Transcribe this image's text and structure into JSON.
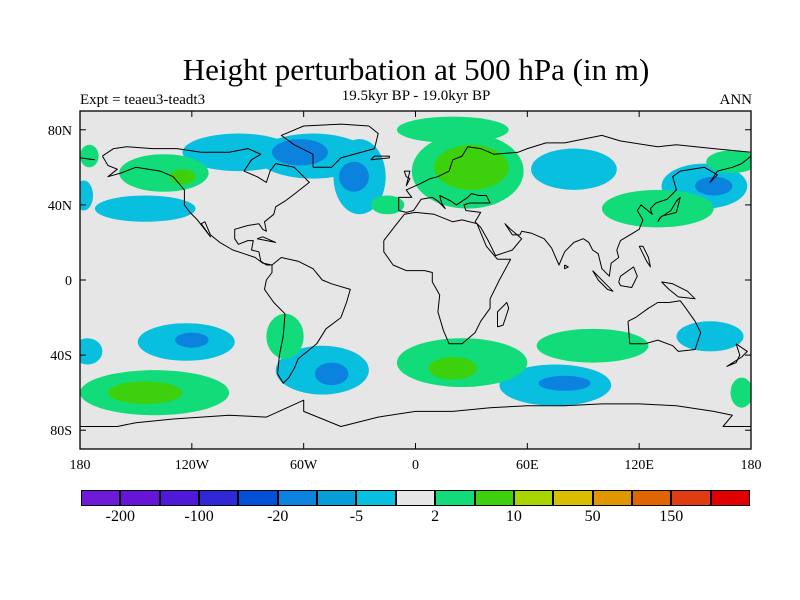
{
  "title": "Height perturbation at 500 hPa (in m)",
  "subtitle": "19.5kyr BP - 19.0kyr BP",
  "experiment_label": "Expt = teaeu3-teadt3",
  "season": "ANN",
  "map": {
    "projection": "cylindrical equidistant",
    "lon_range": [
      -180,
      180
    ],
    "lat_range": [
      -90,
      90
    ],
    "x_ticks": [
      {
        "lon": -180,
        "label": "180"
      },
      {
        "lon": -120,
        "label": "120W"
      },
      {
        "lon": -60,
        "label": "60W"
      },
      {
        "lon": 0,
        "label": "0"
      },
      {
        "lon": 60,
        "label": "60E"
      },
      {
        "lon": 120,
        "label": "120E"
      },
      {
        "lon": 180,
        "label": "180"
      }
    ],
    "y_ticks": [
      {
        "lat": 80,
        "label": "80N"
      },
      {
        "lat": 40,
        "label": "40N"
      },
      {
        "lat": 0,
        "label": "0"
      },
      {
        "lat": -40,
        "label": "40S"
      },
      {
        "lat": -80,
        "label": "80S"
      }
    ],
    "background_color": "#e6e6e6"
  },
  "colorbar": {
    "colors": [
      "#6e1ad6",
      "#6514d8",
      "#5018d8",
      "#3028d6",
      "#0050d8",
      "#0a82de",
      "#069ed9",
      "#08bfe0",
      "#e6e6e6",
      "#12dc7a",
      "#3cd10c",
      "#a8d400",
      "#d8bd00",
      "#e09600",
      "#e06400",
      "#e03c14",
      "#e00000"
    ],
    "labels": [
      {
        "boundary": 1,
        "text": "-200"
      },
      {
        "boundary": 3,
        "text": "-100"
      },
      {
        "boundary": 5,
        "text": "-20"
      },
      {
        "boundary": 7,
        "text": "-5"
      },
      {
        "boundary": 9,
        "text": "2"
      },
      {
        "boundary": 11,
        "text": "10"
      },
      {
        "boundary": 13,
        "text": "50"
      },
      {
        "boundary": 15,
        "text": "150"
      }
    ]
  },
  "anomaly_regions": [
    {
      "level": "-5",
      "color": "#08bfe0",
      "lon": -95,
      "lat": 68,
      "rx": 30,
      "ry": 10
    },
    {
      "level": "-5",
      "color": "#08bfe0",
      "lon": -55,
      "lat": 66,
      "rx": 30,
      "ry": 12
    },
    {
      "level": "-5",
      "color": "#08bfe0",
      "lon": -30,
      "lat": 55,
      "rx": 14,
      "ry": 20
    },
    {
      "level": "-20",
      "color": "#0a82de",
      "lon": -62,
      "lat": 68,
      "rx": 15,
      "ry": 7
    },
    {
      "level": "-20",
      "color": "#0a82de",
      "lon": -33,
      "lat": 55,
      "rx": 8,
      "ry": 8
    },
    {
      "level": "-5",
      "color": "#08bfe0",
      "lon": -145,
      "lat": 38,
      "rx": 27,
      "ry": 7
    },
    {
      "level": "-5",
      "color": "#08bfe0",
      "lon": 85,
      "lat": 59,
      "rx": 23,
      "ry": 11
    },
    {
      "level": "-5",
      "color": "#08bfe0",
      "lon": 155,
      "lat": 50,
      "rx": 23,
      "ry": 12
    },
    {
      "level": "-20",
      "color": "#0a82de",
      "lon": 160,
      "lat": 50,
      "rx": 10,
      "ry": 5
    },
    {
      "level": "-5",
      "color": "#08bfe0",
      "lon": -123,
      "lat": -33,
      "rx": 26,
      "ry": 10
    },
    {
      "level": "-20",
      "color": "#0a82de",
      "lon": -120,
      "lat": -32,
      "rx": 9,
      "ry": 4
    },
    {
      "level": "-5",
      "color": "#08bfe0",
      "lon": -50,
      "lat": -48,
      "rx": 25,
      "ry": 13
    },
    {
      "level": "-20",
      "color": "#0a82de",
      "lon": -45,
      "lat": -50,
      "rx": 9,
      "ry": 6
    },
    {
      "level": "-5",
      "color": "#08bfe0",
      "lon": 75,
      "lat": -56,
      "rx": 30,
      "ry": 11
    },
    {
      "level": "-20",
      "color": "#0a82de",
      "lon": 80,
      "lat": -55,
      "rx": 14,
      "ry": 4
    },
    {
      "level": "-5",
      "color": "#08bfe0",
      "lon": 158,
      "lat": -30,
      "rx": 18,
      "ry": 8
    },
    {
      "level": "-5",
      "color": "#08bfe0",
      "lon": -176,
      "lat": -38,
      "rx": 8,
      "ry": 7
    },
    {
      "level": "-5",
      "color": "#08bfe0",
      "lon": -178,
      "lat": 45,
      "rx": 5,
      "ry": 8
    },
    {
      "level": "2",
      "color": "#12dc7a",
      "lon": -135,
      "lat": 57,
      "rx": 24,
      "ry": 10
    },
    {
      "level": "2",
      "color": "#12dc7a",
      "lon": 28,
      "lat": 58,
      "rx": 30,
      "ry": 20
    },
    {
      "level": "2",
      "color": "#12dc7a",
      "lon": 20,
      "lat": 80,
      "rx": 30,
      "ry": 7
    },
    {
      "level": "2",
      "color": "#12dc7a",
      "lon": -15,
      "lat": 40,
      "rx": 9,
      "ry": 5
    },
    {
      "level": "2",
      "color": "#12dc7a",
      "lon": 130,
      "lat": 38,
      "rx": 30,
      "ry": 10
    },
    {
      "level": "2",
      "color": "#12dc7a",
      "lon": 170,
      "lat": 63,
      "rx": 14,
      "ry": 6
    },
    {
      "level": "2",
      "color": "#12dc7a",
      "lon": -175,
      "lat": 66,
      "rx": 5,
      "ry": 6
    },
    {
      "level": "2",
      "color": "#12dc7a",
      "lon": -140,
      "lat": -60,
      "rx": 40,
      "ry": 12
    },
    {
      "level": "2",
      "color": "#12dc7a",
      "lon": -70,
      "lat": -30,
      "rx": 10,
      "ry": 12
    },
    {
      "level": "2",
      "color": "#12dc7a",
      "lon": 25,
      "lat": -44,
      "rx": 35,
      "ry": 13
    },
    {
      "level": "2",
      "color": "#12dc7a",
      "lon": 95,
      "lat": -35,
      "rx": 30,
      "ry": 9
    },
    {
      "level": "2",
      "color": "#12dc7a",
      "lon": 175,
      "lat": -60,
      "rx": 6,
      "ry": 8
    },
    {
      "level": "10",
      "color": "#3cd10c",
      "lon": 30,
      "lat": 60,
      "rx": 20,
      "ry": 12
    },
    {
      "level": "10",
      "color": "#3cd10c",
      "lon": -145,
      "lat": -60,
      "rx": 20,
      "ry": 6
    },
    {
      "level": "10",
      "color": "#3cd10c",
      "lon": 20,
      "lat": -47,
      "rx": 13,
      "ry": 6
    },
    {
      "level": "10",
      "color": "#3cd10c",
      "lon": -125,
      "lat": 55,
      "rx": 7,
      "ry": 4
    }
  ],
  "coastlines": [
    [
      [
        -168,
        66
      ],
      [
        -162,
        70
      ],
      [
        -155,
        71
      ],
      [
        -141,
        70
      ],
      [
        -128,
        70
      ],
      [
        -115,
        68
      ],
      [
        -100,
        68
      ],
      [
        -90,
        70
      ],
      [
        -83,
        67
      ],
      [
        -88,
        64
      ],
      [
        -92,
        58
      ],
      [
        -85,
        55
      ],
      [
        -80,
        52
      ],
      [
        -78,
        58
      ],
      [
        -75,
        62
      ],
      [
        -65,
        60
      ],
      [
        -61,
        56
      ],
      [
        -57,
        52
      ],
      [
        -66,
        45
      ],
      [
        -70,
        42
      ],
      [
        -75,
        39
      ],
      [
        -76,
        35
      ],
      [
        -81,
        31
      ],
      [
        -80,
        26
      ],
      [
        -82,
        27
      ],
      [
        -84,
        30
      ],
      [
        -90,
        29
      ],
      [
        -97,
        27
      ],
      [
        -97,
        22
      ],
      [
        -95,
        19
      ],
      [
        -90,
        21
      ],
      [
        -87,
        21
      ],
      [
        -88,
        16
      ],
      [
        -84,
        15
      ],
      [
        -83,
        10
      ],
      [
        -80,
        8
      ],
      [
        -77,
        8
      ],
      [
        -82,
        9
      ],
      [
        -86,
        12
      ],
      [
        -92,
        14
      ],
      [
        -98,
        16
      ],
      [
        -105,
        20
      ],
      [
        -110,
        24
      ],
      [
        -113,
        31
      ],
      [
        -115,
        30
      ],
      [
        -110,
        23
      ],
      [
        -117,
        32
      ],
      [
        -121,
        36
      ],
      [
        -124,
        40
      ],
      [
        -124,
        48
      ],
      [
        -130,
        55
      ],
      [
        -137,
        58
      ],
      [
        -150,
        60
      ],
      [
        -158,
        57
      ],
      [
        -165,
        55
      ],
      [
        -160,
        59
      ],
      [
        -165,
        61
      ],
      [
        -168,
        66
      ]
    ],
    [
      [
        -77,
        8
      ],
      [
        -72,
        12
      ],
      [
        -63,
        10
      ],
      [
        -55,
        6
      ],
      [
        -50,
        0
      ],
      [
        -45,
        -2
      ],
      [
        -35,
        -5
      ],
      [
        -37,
        -12
      ],
      [
        -40,
        -20
      ],
      [
        -48,
        -26
      ],
      [
        -53,
        -34
      ],
      [
        -58,
        -38
      ],
      [
        -63,
        -42
      ],
      [
        -65,
        -47
      ],
      [
        -68,
        -52
      ],
      [
        -71,
        -55
      ],
      [
        -74,
        -50
      ],
      [
        -73,
        -40
      ],
      [
        -71,
        -30
      ],
      [
        -70,
        -18
      ],
      [
        -76,
        -12
      ],
      [
        -81,
        -5
      ],
      [
        -80,
        0
      ],
      [
        -77,
        4
      ],
      [
        -77,
        8
      ]
    ],
    [
      [
        -55,
        60
      ],
      [
        -45,
        60
      ],
      [
        -40,
        65
      ],
      [
        -22,
        70
      ],
      [
        -20,
        78
      ],
      [
        -25,
        82
      ],
      [
        -40,
        83
      ],
      [
        -60,
        82
      ],
      [
        -72,
        77
      ],
      [
        -65,
        72
      ],
      [
        -55,
        67
      ],
      [
        -55,
        60
      ]
    ],
    [
      [
        -17,
        21
      ],
      [
        -17,
        15
      ],
      [
        -12,
        8
      ],
      [
        -5,
        5
      ],
      [
        5,
        5
      ],
      [
        9,
        4
      ],
      [
        9,
        -1
      ],
      [
        13,
        -8
      ],
      [
        12,
        -17
      ],
      [
        15,
        -27
      ],
      [
        18,
        -34
      ],
      [
        25,
        -34
      ],
      [
        32,
        -28
      ],
      [
        35,
        -22
      ],
      [
        40,
        -15
      ],
      [
        40,
        -10
      ],
      [
        45,
        0
      ],
      [
        51,
        11
      ],
      [
        44,
        11
      ],
      [
        38,
        18
      ],
      [
        33,
        30
      ],
      [
        25,
        32
      ],
      [
        20,
        31
      ],
      [
        10,
        35
      ],
      [
        0,
        36
      ],
      [
        -6,
        35
      ],
      [
        -10,
        30
      ],
      [
        -17,
        21
      ]
    ],
    [
      [
        -9,
        37
      ],
      [
        -9,
        44
      ],
      [
        -2,
        44
      ],
      [
        -5,
        48
      ],
      [
        2,
        51
      ],
      [
        8,
        54
      ],
      [
        12,
        55
      ],
      [
        18,
        58
      ],
      [
        20,
        64
      ],
      [
        25,
        66
      ],
      [
        28,
        71
      ],
      [
        35,
        70
      ],
      [
        42,
        67
      ],
      [
        55,
        68
      ],
      [
        60,
        70
      ],
      [
        70,
        73
      ],
      [
        80,
        73
      ],
      [
        100,
        77
      ],
      [
        110,
        74
      ],
      [
        130,
        71
      ],
      [
        140,
        72
      ],
      [
        160,
        70
      ],
      [
        180,
        68
      ]
    ],
    [
      [
        -180,
        65
      ],
      [
        -172,
        64
      ]
    ],
    [
      [
        180,
        66
      ],
      [
        175,
        62
      ],
      [
        170,
        60
      ],
      [
        162,
        58
      ],
      [
        158,
        52
      ],
      [
        162,
        56
      ],
      [
        155,
        60
      ],
      [
        142,
        58
      ],
      [
        138,
        55
      ],
      [
        140,
        48
      ],
      [
        135,
        43
      ],
      [
        129,
        41
      ],
      [
        126,
        38
      ],
      [
        127,
        35
      ],
      [
        121,
        40
      ],
      [
        119,
        37
      ],
      [
        122,
        32
      ],
      [
        120,
        27
      ],
      [
        110,
        21
      ],
      [
        108,
        16
      ],
      [
        109,
        12
      ],
      [
        105,
        9
      ],
      [
        104,
        2
      ],
      [
        100,
        6
      ],
      [
        98,
        14
      ],
      [
        95,
        16
      ],
      [
        93,
        20
      ],
      [
        90,
        22
      ],
      [
        85,
        20
      ],
      [
        80,
        15
      ],
      [
        77,
        8
      ],
      [
        73,
        17
      ],
      [
        69,
        22
      ],
      [
        62,
        25
      ],
      [
        57,
        26
      ],
      [
        56,
        24
      ],
      [
        52,
        24
      ],
      [
        50,
        27
      ],
      [
        48,
        30
      ],
      [
        51,
        27
      ],
      [
        57,
        22
      ],
      [
        52,
        16
      ],
      [
        43,
        13
      ],
      [
        39,
        21
      ],
      [
        35,
        28
      ],
      [
        32,
        31
      ],
      [
        35,
        36
      ],
      [
        27,
        37
      ],
      [
        26,
        40
      ],
      [
        29,
        41
      ],
      [
        40,
        41
      ],
      [
        38,
        45
      ],
      [
        34,
        45
      ],
      [
        30,
        46
      ],
      [
        28,
        44
      ],
      [
        22,
        40
      ],
      [
        19,
        42
      ],
      [
        13,
        45
      ],
      [
        14,
        41
      ],
      [
        16,
        38
      ],
      [
        12,
        42
      ],
      [
        9,
        44
      ],
      [
        3,
        43
      ],
      [
        -1,
        37
      ],
      [
        -5,
        36
      ],
      [
        -9,
        37
      ]
    ],
    [
      [
        -5,
        50
      ],
      [
        -3,
        58
      ],
      [
        -6,
        58
      ],
      [
        -5,
        55
      ],
      [
        -3,
        54
      ],
      [
        -5,
        50
      ]
    ],
    [
      [
        114,
        -22
      ],
      [
        115,
        -34
      ],
      [
        123,
        -34
      ],
      [
        130,
        -32
      ],
      [
        138,
        -35
      ],
      [
        141,
        -38
      ],
      [
        150,
        -37
      ],
      [
        153,
        -28
      ],
      [
        150,
        -22
      ],
      [
        145,
        -15
      ],
      [
        142,
        -11
      ],
      [
        136,
        -12
      ],
      [
        130,
        -12
      ],
      [
        125,
        -15
      ],
      [
        118,
        -20
      ],
      [
        114,
        -22
      ]
    ],
    [
      [
        -180,
        -78
      ],
      [
        -160,
        -78
      ],
      [
        -150,
        -76
      ],
      [
        -130,
        -74
      ],
      [
        -100,
        -72
      ],
      [
        -80,
        -73
      ],
      [
        -60,
        -64
      ],
      [
        -60,
        -70
      ],
      [
        -40,
        -78
      ],
      [
        -20,
        -73
      ],
      [
        0,
        -70
      ],
      [
        20,
        -70
      ],
      [
        40,
        -68
      ],
      [
        60,
        -67
      ],
      [
        80,
        -67
      ],
      [
        100,
        -66
      ],
      [
        120,
        -66
      ],
      [
        140,
        -67
      ],
      [
        160,
        -70
      ],
      [
        170,
        -72
      ],
      [
        165,
        -78
      ],
      [
        180,
        -78
      ]
    ],
    [
      [
        130,
        31
      ],
      [
        132,
        34
      ],
      [
        136,
        35
      ],
      [
        140,
        36
      ],
      [
        141,
        40
      ],
      [
        142,
        44
      ],
      [
        140,
        42
      ],
      [
        137,
        37
      ],
      [
        131,
        33
      ],
      [
        130,
        31
      ]
    ],
    [
      [
        172,
        -34
      ],
      [
        178,
        -38
      ],
      [
        175,
        -41
      ],
      [
        167,
        -46
      ],
      [
        172,
        -44
      ],
      [
        174,
        -40
      ],
      [
        172,
        -34
      ]
    ],
    [
      [
        44,
        -25
      ],
      [
        47,
        -24
      ],
      [
        50,
        -15
      ],
      [
        49,
        -12
      ],
      [
        44,
        -17
      ],
      [
        44,
        -25
      ]
    ],
    [
      [
        95,
        5
      ],
      [
        102,
        -2
      ],
      [
        106,
        -6
      ],
      [
        103,
        -5
      ],
      [
        98,
        0
      ],
      [
        95,
        5
      ]
    ],
    [
      [
        109,
        -1
      ],
      [
        110,
        2
      ],
      [
        117,
        7
      ],
      [
        119,
        2
      ],
      [
        116,
        -4
      ],
      [
        110,
        -3
      ],
      [
        109,
        -1
      ]
    ],
    [
      [
        132,
        -1
      ],
      [
        138,
        -2
      ],
      [
        146,
        -6
      ],
      [
        150,
        -10
      ],
      [
        141,
        -9
      ],
      [
        136,
        -5
      ],
      [
        132,
        -1
      ]
    ],
    [
      [
        -24,
        64
      ],
      [
        -14,
        65
      ],
      [
        -14,
        66
      ],
      [
        -22,
        66
      ],
      [
        -24,
        64
      ]
    ],
    [
      [
        -85,
        22
      ],
      [
        -75,
        20
      ],
      [
        -82,
        23
      ],
      [
        -85,
        22
      ]
    ],
    [
      [
        120,
        18
      ],
      [
        122,
        14
      ],
      [
        124,
        10
      ],
      [
        126,
        7
      ],
      [
        125,
        12
      ],
      [
        122,
        18
      ],
      [
        120,
        18
      ]
    ],
    [
      [
        80,
        8
      ],
      [
        82,
        7
      ],
      [
        80,
        6
      ],
      [
        80,
        8
      ]
    ]
  ]
}
